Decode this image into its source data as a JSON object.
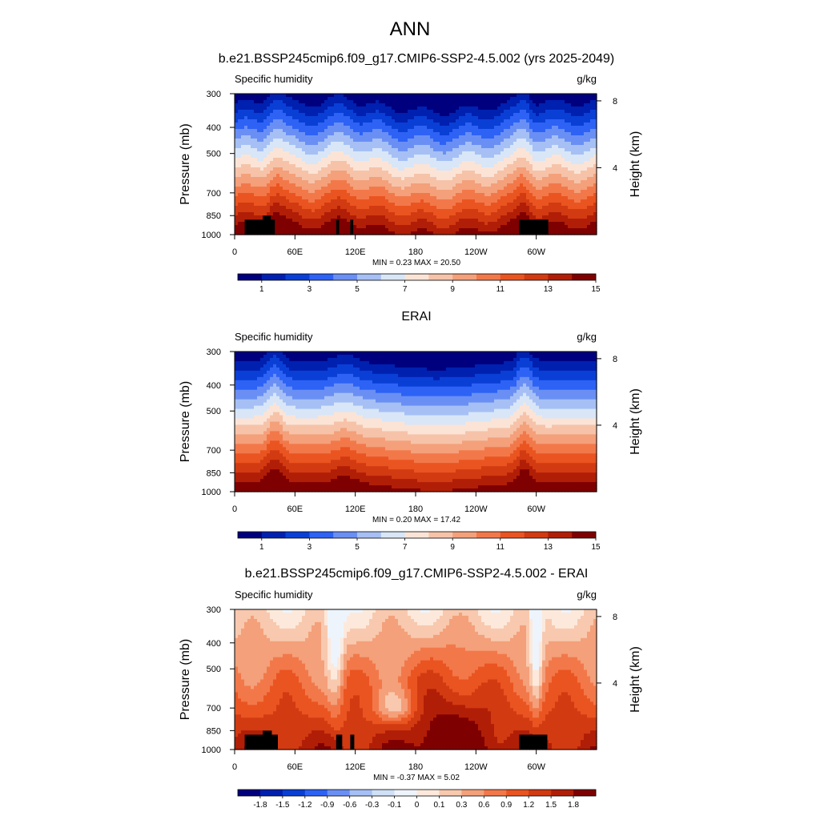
{
  "figure": {
    "title": "ANN"
  },
  "chart_data": [
    {
      "type": "heatmap",
      "title": "b.e21.BSSP245cmip6.f09_g17.CMIP6-SSP2-4.5.002 (yrs 2025-2049)",
      "left_label": "Specific humidity",
      "units": "g/kg",
      "ylabel": "Pressure (mb)",
      "ylabel_right": "Height (km)",
      "xticks": [
        "0",
        "60E",
        "120E",
        "180",
        "120W",
        "60W"
      ],
      "xtick_lon": [
        0,
        60,
        120,
        180,
        240,
        300
      ],
      "xlim": [
        0,
        360
      ],
      "yticks": [
        "300",
        "400",
        "500",
        "700",
        "850",
        "1000"
      ],
      "ytick_p": [
        300,
        400,
        500,
        700,
        850,
        1000
      ],
      "ylim": [
        1000,
        300
      ],
      "yscale": "log",
      "height_ticks": [
        "8",
        "4"
      ],
      "height_km": [
        8,
        4
      ],
      "stats": "MIN =   0.23  MAX =  20.50",
      "field": "absolute",
      "colorbar": {
        "labels": [
          "1",
          "3",
          "5",
          "7",
          "9",
          "11",
          "13",
          "15"
        ],
        "colors": [
          "#00007f",
          "#0020b0",
          "#0a3fd6",
          "#2d62f5",
          "#6a8ff4",
          "#a6c0f5",
          "#d8e6f7",
          "#fbe4d6",
          "#f6c3a9",
          "#f4a07a",
          "#f2784a",
          "#ea5420",
          "#d23a12",
          "#b11e07",
          "#7f0000"
        ]
      },
      "terrain_lon": [
        [
          10,
          40,
          880
        ],
        [
          28,
          36,
          850
        ],
        [
          101,
          104,
          880
        ],
        [
          115,
          118,
          880
        ],
        [
          283,
          312,
          880
        ]
      ]
    },
    {
      "type": "heatmap",
      "title": "ERAI",
      "left_label": "Specific humidity",
      "units": "g/kg",
      "ylabel": "Pressure (mb)",
      "ylabel_right": "Height (km)",
      "xticks": [
        "0",
        "60E",
        "120E",
        "180",
        "120W",
        "60W"
      ],
      "xtick_lon": [
        0,
        60,
        120,
        180,
        240,
        300
      ],
      "xlim": [
        0,
        360
      ],
      "yticks": [
        "300",
        "400",
        "500",
        "700",
        "850",
        "1000"
      ],
      "ytick_p": [
        300,
        400,
        500,
        700,
        850,
        1000
      ],
      "ylim": [
        1000,
        300
      ],
      "yscale": "log",
      "height_ticks": [
        "8",
        "4"
      ],
      "height_km": [
        8,
        4
      ],
      "stats": "MIN =   0.20  MAX =  17.42",
      "field": "absolute",
      "colorbar": {
        "labels": [
          "1",
          "3",
          "5",
          "7",
          "9",
          "11",
          "13",
          "15"
        ],
        "colors": [
          "#00007f",
          "#0020b0",
          "#0a3fd6",
          "#2d62f5",
          "#6a8ff4",
          "#a6c0f5",
          "#d8e6f7",
          "#fbe4d6",
          "#f6c3a9",
          "#f4a07a",
          "#f2784a",
          "#ea5420",
          "#d23a12",
          "#b11e07",
          "#7f0000"
        ]
      },
      "terrain_lon": []
    },
    {
      "type": "heatmap",
      "title": "b.e21.BSSP245cmip6.f09_g17.CMIP6-SSP2-4.5.002 - ERAI",
      "left_label": "Specific humidity",
      "units": "g/kg",
      "ylabel": "Pressure (mb)",
      "ylabel_right": "Height (km)",
      "xticks": [
        "0",
        "60E",
        "120E",
        "180",
        "120W",
        "60W"
      ],
      "xtick_lon": [
        0,
        60,
        120,
        180,
        240,
        300
      ],
      "xlim": [
        0,
        360
      ],
      "yticks": [
        "300",
        "400",
        "500",
        "700",
        "850",
        "1000"
      ],
      "ytick_p": [
        300,
        400,
        500,
        700,
        850,
        1000
      ],
      "ylim": [
        1000,
        300
      ],
      "yscale": "log",
      "height_ticks": [
        "8",
        "4"
      ],
      "height_km": [
        8,
        4
      ],
      "stats": "MIN =  -0.37  MAX =   5.02",
      "field": "difference",
      "colorbar": {
        "labels": [
          "-1.8",
          "-1.5",
          "-1.2",
          "-0.9",
          "-0.6",
          "-0.3",
          "-0.1",
          "0",
          "0.1",
          "0.3",
          "0.6",
          "0.9",
          "1.2",
          "1.5",
          "1.8"
        ],
        "colors": [
          "#00007f",
          "#0020b0",
          "#0a3fd6",
          "#2d62f5",
          "#6a8ff4",
          "#a6c0f5",
          "#cfe0f7",
          "#eef4fb",
          "#fde9dc",
          "#f8c9ae",
          "#f4a07a",
          "#f2784a",
          "#ea5420",
          "#d23a12",
          "#b11e07",
          "#7f0000"
        ]
      },
      "terrain_lon": [
        [
          10,
          43,
          880
        ],
        [
          28,
          37,
          850
        ],
        [
          101,
          107,
          880
        ],
        [
          115,
          119,
          880
        ],
        [
          283,
          311,
          880
        ]
      ]
    }
  ]
}
